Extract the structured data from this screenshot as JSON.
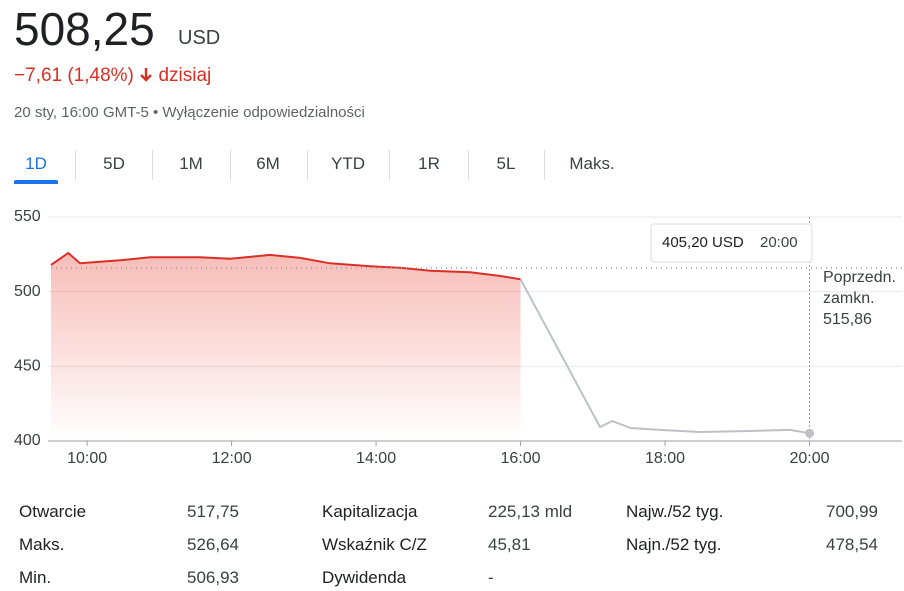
{
  "header": {
    "price": "508,25",
    "currency": "USD",
    "change": "−7,61 (1,48%)",
    "period": "dzisiaj",
    "timestamp": "20 sty, 16:00 GMT-5 •",
    "disclaimer": "Wyłączenie odpowiedzialności"
  },
  "tabs": {
    "items": [
      "1D",
      "5D",
      "1M",
      "6M",
      "YTD",
      "1R",
      "5L",
      "Maks."
    ],
    "active": 0
  },
  "chart_data": {
    "type": "line",
    "x": [
      9.5,
      9.74,
      9.9,
      10.18,
      10.46,
      10.87,
      11.56,
      11.98,
      12.53,
      12.95,
      13.36,
      13.92,
      14.33,
      14.75,
      15.3,
      15.72,
      16.0
    ],
    "series": [
      {
        "color": "#d93025",
        "x": [
          9.5,
          9.74,
          9.9,
          10.18,
          10.46,
          10.87,
          11.56,
          11.98,
          12.53,
          12.95,
          13.36,
          13.92,
          14.33,
          14.75,
          15.3,
          15.72,
          16.0
        ],
        "values": [
          517.9,
          525.9,
          519,
          520,
          521,
          523,
          523,
          522,
          524.6,
          522.6,
          519,
          517,
          516,
          514,
          513,
          510.5,
          508.25
        ]
      },
      {
        "color": "#bdc1c6",
        "x": [
          16.0,
          17.1,
          17.27,
          17.52,
          17.93,
          18.48,
          19.18,
          19.73,
          20.0
        ],
        "values": [
          508.25,
          409.4,
          413.4,
          408.7,
          407.4,
          406,
          406.7,
          407.4,
          405.2
        ]
      }
    ],
    "xlim": [
      9.5,
      21.28
    ],
    "xticks": [
      {
        "value": 10,
        "label": "10:00"
      },
      {
        "value": 12,
        "label": "12:00"
      },
      {
        "value": 14,
        "label": "14:00"
      },
      {
        "value": 16,
        "label": "16:00"
      },
      {
        "value": 18,
        "label": "18:00"
      },
      {
        "value": 20,
        "label": "20:00"
      }
    ],
    "ylim": [
      400,
      550
    ],
    "yticks": [
      400,
      450,
      500,
      550
    ],
    "grid": true,
    "previous_close": {
      "value": 515.86,
      "label": "515,86"
    },
    "previous_close_label": [
      "Poprzedn.",
      "zamkn."
    ],
    "tooltip": {
      "x": 20,
      "price": "405,20 USD",
      "time": "20:00"
    }
  },
  "stats": {
    "rows": [
      [
        [
          "Otwarcie",
          "517,75"
        ],
        [
          "Kapitalizacja",
          "225,13 mld"
        ],
        [
          "Najw./52 tyg.",
          "700,99"
        ]
      ],
      [
        [
          "Maks.",
          "526,64"
        ],
        [
          "Wskaźnik C/Z",
          "45,81"
        ],
        [
          "Najn./52 tyg.",
          "478,54"
        ]
      ],
      [
        [
          "Min.",
          "506,93"
        ],
        [
          "Dywidenda",
          "-"
        ],
        null
      ]
    ]
  }
}
